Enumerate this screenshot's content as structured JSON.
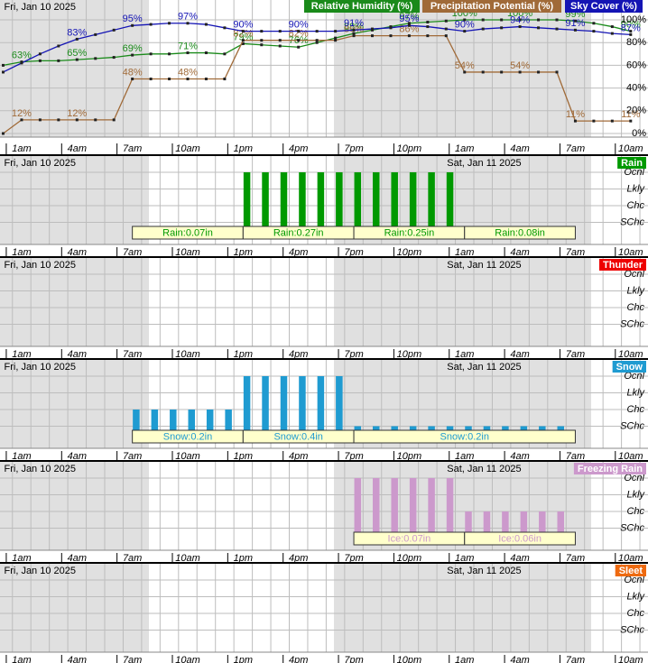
{
  "chart_data": [
    {
      "type": "line",
      "dates": [
        {
          "label": "Fri, Jan 10 2025",
          "at": 0
        }
      ],
      "categories": [
        null,
        "1am",
        null,
        null,
        "4am",
        null,
        null,
        "7am",
        null,
        null,
        "10am",
        null,
        null,
        "1pm",
        null,
        null,
        "4pm",
        null,
        null,
        "7pm",
        null,
        null,
        "10pm",
        null,
        null,
        "1am",
        null,
        null,
        "4am",
        null,
        null,
        "7am",
        null,
        null,
        "10am"
      ],
      "ylim": [
        0,
        100
      ],
      "yticks": [
        {
          "value": 100,
          "label": "100%"
        },
        {
          "value": 80,
          "label": "80%"
        },
        {
          "value": 60,
          "label": "60%"
        },
        {
          "value": 40,
          "label": "40%"
        },
        {
          "value": 20,
          "label": "20%"
        },
        {
          "value": 0,
          "label": "0%"
        }
      ],
      "series": [
        {
          "name": "Relative Humidity (%)",
          "color": "#1a8a1a",
          "values": [
            60,
            63,
            64,
            64,
            65,
            66,
            67,
            69,
            70,
            70,
            71,
            71,
            70,
            79,
            78,
            77,
            76,
            80,
            84,
            88,
            91,
            94,
            97,
            98,
            99,
            100,
            100,
            100,
            100,
            100,
            100,
            99,
            97,
            94,
            90
          ],
          "value_labels": [
            null,
            "63%",
            null,
            null,
            "65%",
            null,
            null,
            "69%",
            null,
            null,
            "71%",
            null,
            null,
            "79%",
            null,
            null,
            "76%",
            null,
            null,
            "88%",
            null,
            null,
            "97%",
            null,
            null,
            "100%",
            null,
            null,
            "100%",
            null,
            null,
            "99%",
            null,
            null,
            "90%"
          ]
        },
        {
          "name": "Precipitation Potential (%)",
          "color": "#a06a38",
          "values": [
            0,
            12,
            12,
            12,
            12,
            12,
            12,
            48,
            48,
            48,
            48,
            48,
            48,
            82,
            82,
            82,
            82,
            82,
            82,
            86,
            86,
            86,
            86,
            86,
            86,
            54,
            54,
            54,
            54,
            54,
            54,
            11,
            11,
            11,
            11
          ],
          "value_labels": [
            null,
            "12%",
            null,
            null,
            "12%",
            null,
            null,
            "48%",
            null,
            null,
            "48%",
            null,
            null,
            "82%",
            null,
            null,
            "82%",
            null,
            null,
            "86%",
            null,
            null,
            "86%",
            null,
            null,
            "54%",
            null,
            null,
            "54%",
            null,
            null,
            "11%",
            null,
            null,
            "11%"
          ]
        },
        {
          "name": "Sky Cover (%)",
          "color": "#1414b4",
          "values": [
            54,
            62,
            70,
            77,
            83,
            87,
            91,
            95,
            96,
            97,
            97,
            96,
            93,
            90,
            90,
            90,
            90,
            90,
            90,
            91,
            92,
            93,
            95,
            94,
            92,
            90,
            92,
            93,
            94,
            93,
            92,
            91,
            90,
            88,
            87
          ],
          "value_labels": [
            null,
            null,
            null,
            null,
            "83%",
            null,
            null,
            "95%",
            null,
            null,
            "97%",
            null,
            null,
            "90%",
            null,
            null,
            "90%",
            null,
            null,
            "91%",
            null,
            null,
            "95%",
            null,
            null,
            "90%",
            null,
            null,
            "94%",
            null,
            null,
            "91%",
            null,
            null,
            "87%"
          ]
        }
      ]
    },
    {
      "type": "bar",
      "title": "Rain",
      "color": "#009900",
      "dates": [
        {
          "label": "Fri, Jan 10 2025",
          "at": 0
        },
        {
          "label": "Sat, Jan 11 2025",
          "at": 24
        }
      ],
      "categories": [
        null,
        "1am",
        null,
        null,
        "4am",
        null,
        null,
        "7am",
        null,
        null,
        "10am",
        null,
        null,
        "1pm",
        null,
        null,
        "4pm",
        null,
        null,
        "7pm",
        null,
        null,
        "10pm",
        null,
        null,
        "1am",
        null,
        null,
        "4am",
        null,
        null,
        "7am",
        null,
        null,
        "10am"
      ],
      "ylim": [
        0,
        4
      ],
      "yticks": [
        {
          "value": 4,
          "label": "Ocnl"
        },
        {
          "value": 3,
          "label": "Lkly"
        },
        {
          "value": 2,
          "label": "Chc"
        },
        {
          "value": 1,
          "label": "SChc"
        }
      ],
      "values": [
        0,
        0,
        0,
        0,
        0,
        0,
        0,
        0,
        0,
        0,
        0,
        0,
        0,
        4,
        4,
        4,
        4,
        4,
        4,
        4,
        4,
        4,
        4,
        4,
        4,
        0,
        0,
        0,
        0,
        0,
        0,
        0,
        0,
        0,
        0
      ],
      "amounts": [
        {
          "label": "Rain:0.07in",
          "start": 7,
          "end": 13
        },
        {
          "label": "Rain:0.27in",
          "start": 13,
          "end": 19
        },
        {
          "label": "Rain:0.25in",
          "start": 19,
          "end": 25
        },
        {
          "label": "Rain:0.08in",
          "start": 25,
          "end": 31
        }
      ]
    },
    {
      "type": "bar",
      "title": "Thunder",
      "color": "#ee0000",
      "dates": [
        {
          "label": "Fri, Jan 10 2025",
          "at": 0
        },
        {
          "label": "Sat, Jan 11 2025",
          "at": 24
        }
      ],
      "categories": [
        null,
        "1am",
        null,
        null,
        "4am",
        null,
        null,
        "7am",
        null,
        null,
        "10am",
        null,
        null,
        "1pm",
        null,
        null,
        "4pm",
        null,
        null,
        "7pm",
        null,
        null,
        "10pm",
        null,
        null,
        "1am",
        null,
        null,
        "4am",
        null,
        null,
        "7am",
        null,
        null,
        "10am"
      ],
      "ylim": [
        0,
        4
      ],
      "yticks": [
        {
          "value": 4,
          "label": "Ocnl"
        },
        {
          "value": 3,
          "label": "Lkly"
        },
        {
          "value": 2,
          "label": "Chc"
        },
        {
          "value": 1,
          "label": "SChc"
        }
      ],
      "values": [
        0,
        0,
        0,
        0,
        0,
        0,
        0,
        0,
        0,
        0,
        0,
        0,
        0,
        0,
        0,
        0,
        0,
        0,
        0,
        0,
        0,
        0,
        0,
        0,
        0,
        0,
        0,
        0,
        0,
        0,
        0,
        0,
        0,
        0,
        0
      ],
      "amounts": []
    },
    {
      "type": "bar",
      "title": "Snow",
      "color": "#1f9bd1",
      "dates": [
        {
          "label": "Fri, Jan 10 2025",
          "at": 0
        },
        {
          "label": "Sat, Jan 11 2025",
          "at": 24
        }
      ],
      "categories": [
        null,
        "1am",
        null,
        null,
        "4am",
        null,
        null,
        "7am",
        null,
        null,
        "10am",
        null,
        null,
        "1pm",
        null,
        null,
        "4pm",
        null,
        null,
        "7pm",
        null,
        null,
        "10pm",
        null,
        null,
        "1am",
        null,
        null,
        "4am",
        null,
        null,
        "7am",
        null,
        null,
        "10am"
      ],
      "ylim": [
        0,
        4
      ],
      "yticks": [
        {
          "value": 4,
          "label": "Ocnl"
        },
        {
          "value": 3,
          "label": "Lkly"
        },
        {
          "value": 2,
          "label": "Chc"
        },
        {
          "value": 1,
          "label": "SChc"
        }
      ],
      "values": [
        0,
        0,
        0,
        0,
        0,
        0,
        0,
        2,
        2,
        2,
        2,
        2,
        2,
        4,
        4,
        4,
        4,
        4,
        4,
        1,
        1,
        1,
        1,
        1,
        1,
        1,
        1,
        1,
        1,
        1,
        1,
        0,
        0,
        0,
        0
      ],
      "amounts": [
        {
          "label": "Snow:0.2in",
          "start": 7,
          "end": 13
        },
        {
          "label": "Snow:0.4in",
          "start": 13,
          "end": 19
        },
        {
          "label": "Snow:0.2in",
          "start": 19,
          "end": 31
        }
      ]
    },
    {
      "type": "bar",
      "title": "Freezing Rain",
      "color": "#cc99cc",
      "dates": [
        {
          "label": "Fri, Jan 10 2025",
          "at": 0
        },
        {
          "label": "Sat, Jan 11 2025",
          "at": 24
        }
      ],
      "categories": [
        null,
        "1am",
        null,
        null,
        "4am",
        null,
        null,
        "7am",
        null,
        null,
        "10am",
        null,
        null,
        "1pm",
        null,
        null,
        "4pm",
        null,
        null,
        "7pm",
        null,
        null,
        "10pm",
        null,
        null,
        "1am",
        null,
        null,
        "4am",
        null,
        null,
        "7am",
        null,
        null,
        "10am"
      ],
      "ylim": [
        0,
        4
      ],
      "yticks": [
        {
          "value": 4,
          "label": "Ocnl"
        },
        {
          "value": 3,
          "label": "Lkly"
        },
        {
          "value": 2,
          "label": "Chc"
        },
        {
          "value": 1,
          "label": "SChc"
        }
      ],
      "values": [
        0,
        0,
        0,
        0,
        0,
        0,
        0,
        0,
        0,
        0,
        0,
        0,
        0,
        0,
        0,
        0,
        0,
        0,
        0,
        4,
        4,
        4,
        4,
        4,
        4,
        2,
        2,
        2,
        2,
        2,
        2,
        0,
        0,
        0,
        0
      ],
      "amounts": [
        {
          "label": "Ice:0.07in",
          "start": 19,
          "end": 25
        },
        {
          "label": "Ice:0.06in",
          "start": 25,
          "end": 31
        }
      ]
    },
    {
      "type": "bar",
      "title": "Sleet",
      "color": "#ee6a10",
      "dates": [
        {
          "label": "Fri, Jan 10 2025",
          "at": 0
        },
        {
          "label": "Sat, Jan 11 2025",
          "at": 24
        }
      ],
      "categories": [
        null,
        "1am",
        null,
        null,
        "4am",
        null,
        null,
        "7am",
        null,
        null,
        "10am",
        null,
        null,
        "1pm",
        null,
        null,
        "4pm",
        null,
        null,
        "7pm",
        null,
        null,
        "10pm",
        null,
        null,
        "1am",
        null,
        null,
        "4am",
        null,
        null,
        "7am",
        null,
        null,
        "10am"
      ],
      "ylim": [
        0,
        4
      ],
      "yticks": [
        {
          "value": 4,
          "label": "Ocnl"
        },
        {
          "value": 3,
          "label": "Lkly"
        },
        {
          "value": 2,
          "label": "Chc"
        },
        {
          "value": 1,
          "label": "SChc"
        }
      ],
      "values": [
        0,
        0,
        0,
        0,
        0,
        0,
        0,
        0,
        0,
        0,
        0,
        0,
        0,
        0,
        0,
        0,
        0,
        0,
        0,
        0,
        0,
        0,
        0,
        0,
        0,
        0,
        0,
        0,
        0,
        0,
        0,
        0,
        0,
        0,
        0
      ],
      "amounts": []
    }
  ]
}
